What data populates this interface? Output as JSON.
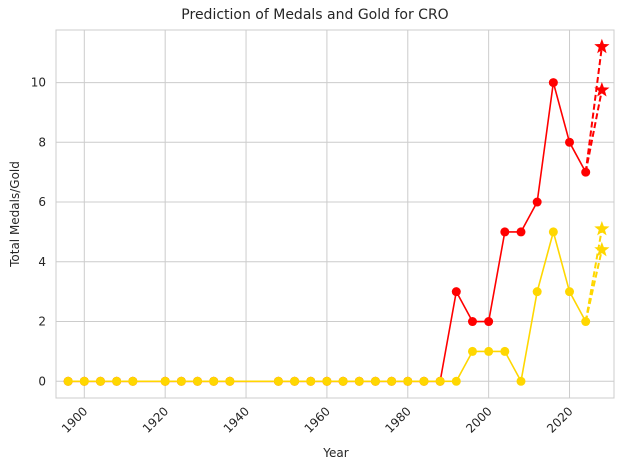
{
  "chart_data": {
    "type": "line",
    "title": "Prediction of Medals and Gold for CRO",
    "xlabel": "Year",
    "ylabel": "Total Medals/Gold",
    "xlim": [
      1893,
      2031
    ],
    "ylim": [
      -0.56,
      11.76
    ],
    "x_ticks": [
      1900,
      1920,
      1940,
      1960,
      1980,
      2000,
      2020
    ],
    "y_ticks": [
      0,
      2,
      4,
      6,
      8,
      10
    ],
    "grid": true,
    "legend": "none",
    "colors": {
      "total": "#ff0000",
      "gold": "#ffd700",
      "grid": "#cccccc",
      "frame": "#cccccc"
    },
    "series": [
      {
        "key": "total",
        "color": "#ff0000",
        "style": "solid",
        "marker": "circle",
        "x": [
          1896,
          1900,
          1904,
          1908,
          1912,
          1920,
          1924,
          1928,
          1932,
          1936,
          1948,
          1952,
          1956,
          1960,
          1964,
          1968,
          1972,
          1976,
          1980,
          1984,
          1988,
          1992,
          1996,
          2000,
          2004,
          2008,
          2012,
          2016,
          2020,
          2024
        ],
        "y": [
          0,
          0,
          0,
          0,
          0,
          0,
          0,
          0,
          0,
          0,
          0,
          0,
          0,
          0,
          0,
          0,
          0,
          0,
          0,
          0,
          0,
          3,
          2,
          2,
          5,
          5,
          6,
          10,
          8,
          7
        ]
      },
      {
        "key": "gold",
        "color": "#ffd700",
        "style": "solid",
        "marker": "circle",
        "x": [
          1896,
          1900,
          1904,
          1908,
          1912,
          1920,
          1924,
          1928,
          1932,
          1936,
          1948,
          1952,
          1956,
          1960,
          1964,
          1968,
          1972,
          1976,
          1980,
          1984,
          1988,
          1992,
          1996,
          2000,
          2004,
          2008,
          2012,
          2016,
          2020,
          2024
        ],
        "y": [
          0,
          0,
          0,
          0,
          0,
          0,
          0,
          0,
          0,
          0,
          0,
          0,
          0,
          0,
          0,
          0,
          0,
          0,
          0,
          0,
          0,
          0,
          1,
          1,
          1,
          0,
          3,
          5,
          3,
          2
        ]
      },
      {
        "key": "total-prediction-upper",
        "color": "#ff0000",
        "style": "dashed",
        "marker": "star",
        "x": [
          2024,
          2028
        ],
        "y": [
          7,
          11.2
        ]
      },
      {
        "key": "total-prediction-lower",
        "color": "#ff0000",
        "style": "dashed",
        "marker": "star",
        "x": [
          2024,
          2028
        ],
        "y": [
          7,
          9.75
        ]
      },
      {
        "key": "gold-prediction-upper",
        "color": "#ffd700",
        "style": "dashed",
        "marker": "star",
        "x": [
          2024,
          2028
        ],
        "y": [
          2,
          5.1
        ]
      },
      {
        "key": "gold-prediction-lower",
        "color": "#ffd700",
        "style": "dashed",
        "marker": "star",
        "x": [
          2024,
          2028
        ],
        "y": [
          2,
          4.4
        ]
      }
    ]
  }
}
